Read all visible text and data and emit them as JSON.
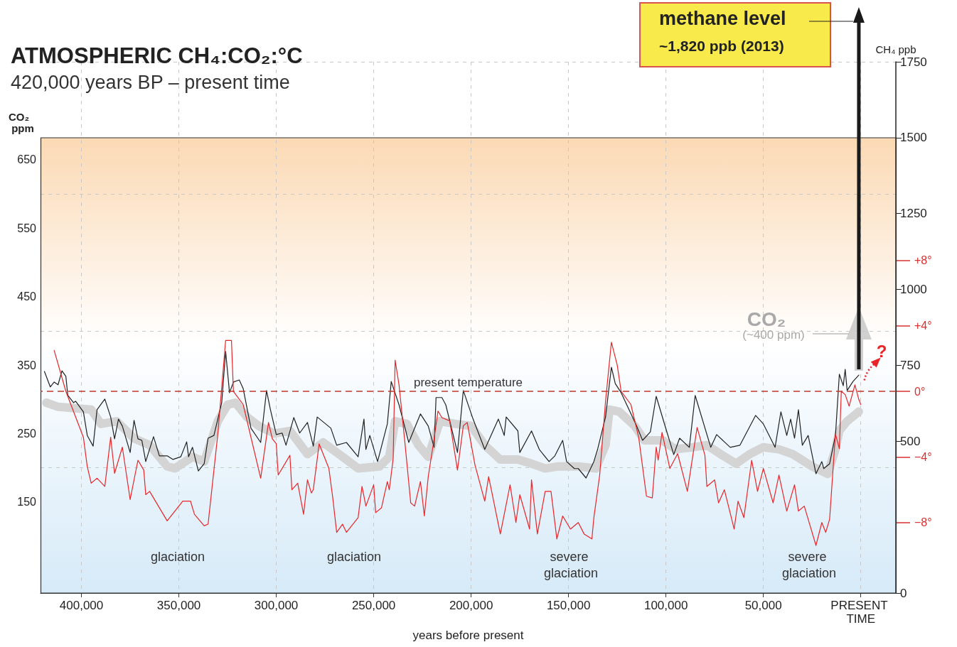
{
  "chart_data": {
    "type": "line",
    "title": "ATMOSPHERIC CH₄:CO₂:°C",
    "subtitle": "420,000 years BP – present time",
    "xlabel": "years before present",
    "ylabel": "CO₂ ppm",
    "y2label": "CH₄ ppb",
    "xlim": [
      421000,
      -18000
    ],
    "xticks": [
      {
        "value": 400000,
        "label": "400,000"
      },
      {
        "value": 350000,
        "label": "350,000"
      },
      {
        "value": 300000,
        "label": "300,000"
      },
      {
        "value": 250000,
        "label": "250,000"
      },
      {
        "value": 200000,
        "label": "200,000"
      },
      {
        "value": 150000,
        "label": "150,000"
      },
      {
        "value": 100000,
        "label": "100,000"
      },
      {
        "value": 50000,
        "label": "50,000"
      },
      {
        "value": 0,
        "label": "PRESENT TIME"
      }
    ],
    "ylim": [
      17,
      793
    ],
    "yticks": [
      150,
      250,
      350,
      450,
      550,
      650
    ],
    "y2lim": [
      0,
      1750
    ],
    "y2ticks": [
      0,
      500,
      750,
      1000,
      1250,
      1500,
      1750
    ],
    "y3lim": [
      -12.3,
      20.1
    ],
    "y3ticks": [
      {
        "value": 8,
        "label": "+8°"
      },
      {
        "value": 4,
        "label": "+4°"
      },
      {
        "value": 0,
        "label": "0°"
      },
      {
        "value": -4,
        "label": "−4°"
      },
      {
        "value": -8,
        "label": "−8°"
      }
    ],
    "grid": true,
    "marker": "none",
    "ref_lines": [
      {
        "axis": "y3",
        "value": 0,
        "label": "present temperature",
        "color": "#c0392b",
        "line_style": "dashed"
      }
    ],
    "annotations": [
      "methane level",
      "~1,820 ppb (2013)",
      "CO₂",
      "(~400 ppm)",
      "?",
      "glaciation",
      "glaciation",
      "severe glaciation",
      "severe glaciation"
    ],
    "series": [
      {
        "color": "#d4d4d4",
        "axis": "y",
        "x": [
          418000,
          412000,
          395000,
          390000,
          382000,
          373000,
          365000,
          356000,
          352000,
          343000,
          337000,
          330000,
          325000,
          321000,
          315000,
          309000,
          301000,
          293000,
          284000,
          276000,
          266000,
          258000,
          247000,
          242000,
          239000,
          233000,
          227000,
          222000,
          216000,
          208000,
          200000,
          193000,
          185000,
          176000,
          169000,
          162000,
          155000,
          145000,
          136000,
          131000,
          129000,
          124000,
          116000,
          111000,
          102000,
          95000,
          86000,
          79000,
          72000,
          64000,
          57000,
          50000,
          42000,
          35000,
          25000,
          17000,
          13000,
          11000,
          7000,
          1000
        ],
        "values": [
          295,
          289,
          285,
          264,
          268,
          243,
          233,
          202,
          199,
          216,
          209,
          268,
          292,
          295,
          274,
          261,
          250,
          254,
          220,
          237,
          216,
          199,
          202,
          216,
          268,
          264,
          233,
          216,
          268,
          264,
          261,
          233,
          212,
          212,
          206,
          199,
          202,
          202,
          199,
          233,
          285,
          282,
          261,
          240,
          240,
          227,
          230,
          233,
          220,
          206,
          220,
          230,
          227,
          220,
          202,
          191,
          227,
          254,
          268,
          282
        ]
      },
      {
        "color": "#222222",
        "axis": "y2",
        "x": [
          419000,
          416000,
          414000,
          412000,
          410000,
          408000,
          407000,
          404000,
          403000,
          399000,
          397000,
          394000,
          392000,
          388000,
          385000,
          383000,
          381000,
          379000,
          375000,
          373000,
          371000,
          369000,
          367000,
          363000,
          360000,
          356000,
          353000,
          349000,
          346000,
          345000,
          343000,
          340000,
          337000,
          335000,
          332000,
          328000,
          326000,
          324000,
          322000,
          319000,
          317000,
          313000,
          308000,
          305000,
          303000,
          300000,
          297000,
          295000,
          291000,
          288000,
          284000,
          281000,
          279000,
          272000,
          269000,
          264000,
          258000,
          255000,
          254000,
          252000,
          248000,
          243000,
          241000,
          237000,
          232000,
          226000,
          222000,
          219000,
          218000,
          215000,
          213000,
          207000,
          204000,
          199000,
          193000,
          186000,
          183000,
          182000,
          176000,
          175000,
          169000,
          165000,
          160000,
          157000,
          153000,
          151000,
          147000,
          145000,
          141000,
          137000,
          135000,
          131000,
          128000,
          126000,
          123000,
          115000,
          112000,
          108000,
          105000,
          101000,
          96000,
          93000,
          88000,
          85000,
          77000,
          74000,
          67000,
          62000,
          54000,
          50000,
          44000,
          41000,
          38000,
          36000,
          34000,
          32000,
          30000,
          27000,
          23000,
          20000,
          19000,
          16000,
          13000,
          11000,
          9000,
          8000,
          7000,
          4000,
          1000
        ],
        "values": [
          730,
          679,
          695,
          686,
          732,
          714,
          651,
          627,
          632,
          597,
          519,
          484,
          604,
          639,
          580,
          508,
          573,
          550,
          463,
          569,
          508,
          503,
          433,
          515,
          452,
          452,
          440,
          449,
          498,
          449,
          480,
          402,
          426,
          510,
          519,
          627,
          796,
          660,
          695,
          702,
          674,
          543,
          496,
          667,
          604,
          522,
          527,
          487,
          578,
          527,
          562,
          484,
          580,
          543,
          487,
          496,
          449,
          573,
          473,
          519,
          433,
          557,
          697,
          620,
          496,
          590,
          550,
          480,
          644,
          644,
          620,
          463,
          667,
          573,
          473,
          573,
          519,
          580,
          534,
          463,
          534,
          473,
          433,
          452,
          503,
          433,
          410,
          410,
          379,
          433,
          475,
          580,
          744,
          690,
          660,
          550,
          503,
          531,
          648,
          562,
          456,
          510,
          480,
          651,
          480,
          522,
          480,
          487,
          585,
          557,
          480,
          597,
          519,
          573,
          510,
          604,
          487,
          519,
          393,
          433,
          410,
          426,
          519,
          721,
          683,
          737,
          667,
          697,
          718
        ]
      },
      {
        "color": "#e8262a",
        "axis": "y3",
        "x": [
          414000,
          408000,
          399000,
          397000,
          395000,
          392000,
          388000,
          385000,
          383000,
          379000,
          377000,
          375000,
          371000,
          368000,
          367000,
          365000,
          356000,
          348000,
          344000,
          342000,
          337000,
          335000,
          330000,
          326000,
          323000,
          322000,
          317000,
          308000,
          304000,
          302000,
          300000,
          299000,
          293000,
          292000,
          289000,
          286000,
          284000,
          282000,
          281000,
          278000,
          273000,
          271000,
          269000,
          266000,
          264000,
          258000,
          256000,
          254000,
          250000,
          249000,
          246000,
          243000,
          242000,
          240000,
          239000,
          237000,
          234000,
          231000,
          229000,
          226000,
          224000,
          222000,
          219000,
          217000,
          215000,
          211000,
          207000,
          204000,
          202000,
          198000,
          193000,
          191000,
          185000,
          180000,
          177000,
          175000,
          170000,
          169000,
          166000,
          162000,
          159000,
          156000,
          153000,
          149000,
          145000,
          142000,
          138000,
          137000,
          134000,
          131000,
          128000,
          125000,
          123000,
          118000,
          114000,
          110000,
          107000,
          105000,
          104000,
          102000,
          98000,
          94000,
          89000,
          84000,
          80000,
          79000,
          75000,
          73000,
          70000,
          65000,
          63000,
          60000,
          56000,
          53000,
          50000,
          45000,
          42000,
          38000,
          34000,
          32000,
          29000,
          27000,
          23000,
          20000,
          18000,
          16000,
          13000,
          11000,
          10000,
          8000,
          6000,
          3000,
          1000,
          0
        ],
        "values": [
          2.5,
          0,
          -2.8,
          -4.6,
          -5.6,
          -5.3,
          -5.8,
          -2.8,
          -5.0,
          -3.4,
          -5.0,
          -6.6,
          -4.2,
          -4.8,
          -6.3,
          -6.1,
          -7.9,
          -6.7,
          -6.7,
          -7.5,
          -8.2,
          -8.1,
          -2.6,
          3.1,
          3.1,
          0,
          -0.8,
          -5.3,
          -1.9,
          -2.9,
          -3.2,
          -5.1,
          -3.9,
          -6.0,
          -5.6,
          -7.5,
          -5.4,
          -6.2,
          -6.0,
          -3.2,
          -4.7,
          -6.5,
          -8.6,
          -8.1,
          -8.6,
          -7.7,
          -5.8,
          -7.0,
          -5.7,
          -7.4,
          -7.1,
          -5.5,
          -6.0,
          -4.1,
          1.9,
          0.4,
          -3.1,
          -6.8,
          -7.0,
          -5.5,
          -7.6,
          -5.2,
          -2.9,
          -1.2,
          -1.6,
          -1.8,
          -4.8,
          -2.1,
          -1.9,
          -4.5,
          -6.7,
          -5.2,
          -8.7,
          -5.7,
          -8.0,
          -6.3,
          -8.4,
          -5.4,
          -8.7,
          -6.1,
          -6.1,
          -9.0,
          -7.6,
          -8.4,
          -8.0,
          -8.7,
          -9.0,
          -7.7,
          -5.1,
          -0.6,
          3.0,
          1.6,
          0,
          -0.8,
          -2.8,
          -6.4,
          -6.5,
          -3.4,
          -4.2,
          -2.5,
          -4.7,
          -3.8,
          -6.1,
          -2.2,
          -3.9,
          -5.8,
          -5.4,
          -6.8,
          -6.0,
          -8.4,
          -6.7,
          -7.7,
          -4.2,
          -6.1,
          -4.7,
          -6.8,
          -5.1,
          -7.3,
          -5.7,
          -7.3,
          -7.0,
          -7.8,
          -9.4,
          -8.0,
          -8.6,
          -7.8,
          -2.6,
          -3.5,
          0,
          -0.2,
          -0.9,
          0.4,
          -0.5,
          -0.8
        ]
      }
    ]
  }
}
